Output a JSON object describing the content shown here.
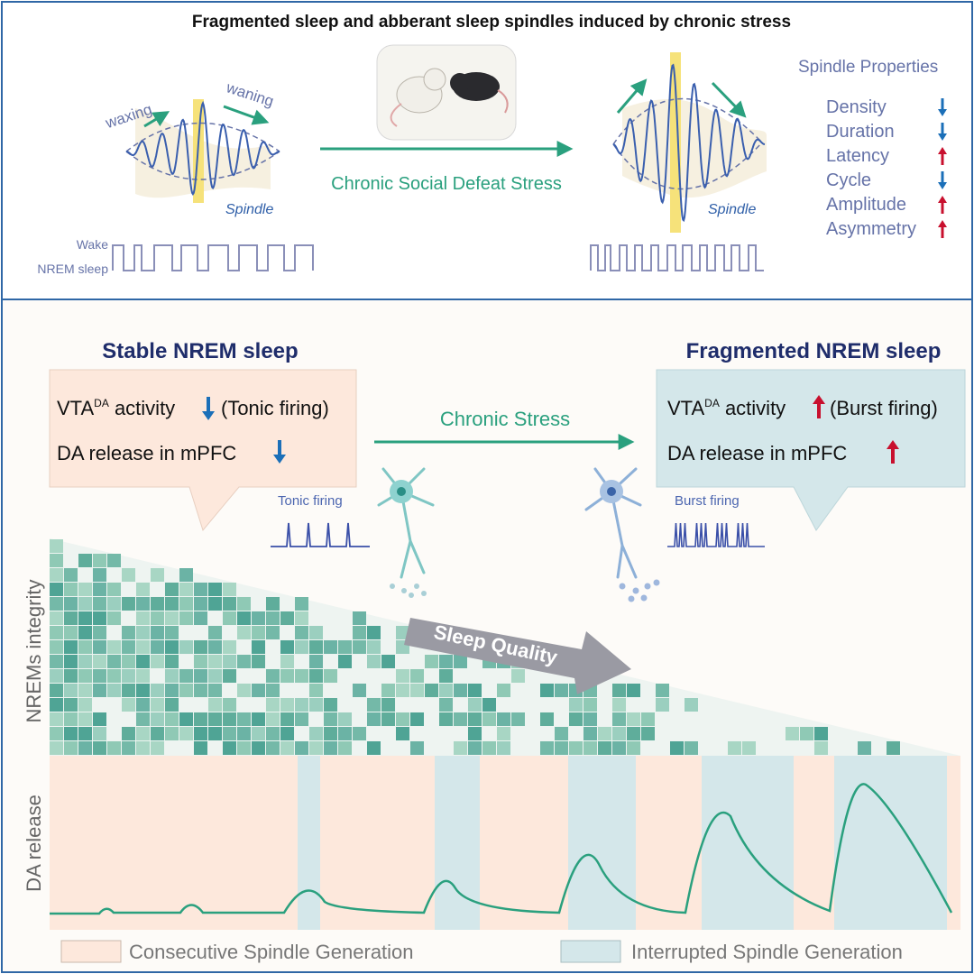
{
  "top": {
    "title": "Fragmented sleep and abberant sleep spindles induced by chronic stress",
    "waxing": "waxing",
    "waning": "waning",
    "spindle_label": "Spindle",
    "wake_label": "Wake",
    "nrem_label": "NREM sleep",
    "arrow_label": "Chronic Social Defeat Stress",
    "properties_title": "Spindle Properties",
    "properties": [
      {
        "name": "Density",
        "dir": "down"
      },
      {
        "name": "Duration",
        "dir": "down"
      },
      {
        "name": "Latency",
        "dir": "up"
      },
      {
        "name": "Cycle",
        "dir": "down"
      },
      {
        "name": "Amplitude",
        "dir": "up"
      },
      {
        "name": "Asymmetry",
        "dir": "up"
      }
    ]
  },
  "bottom": {
    "stable_title": "Stable NREM sleep",
    "stable_line1_pre": "VTA",
    "stable_line1_sup": "DA",
    "stable_line1_mid": " activity",
    "stable_line1_post": "(Tonic firing)",
    "stable_line2": "DA release in mPFC",
    "fragmented_title": "Fragmented NREM sleep",
    "frag_line1_pre": "VTA",
    "frag_line1_sup": "DA",
    "frag_line1_mid": " activity",
    "frag_line1_post": "(Burst firing)",
    "frag_line2": "DA release in mPFC",
    "chronic_stress": "Chronic Stress",
    "tonic_firing": "Tonic firing",
    "burst_firing": "Burst firing",
    "sleep_quality": "Sleep Quality",
    "nrems_axis": "NREMs integrity",
    "da_axis": "DA release",
    "legend_consecutive": "Consecutive Spindle Generation",
    "legend_interrupted": "Interrupted Spindle Generation"
  },
  "colors": {
    "frame": "#2f67a6",
    "teal": "#2aa07e",
    "blue_text": "#6673a8",
    "navy": "#1f2d6b",
    "arrow_up": "#c8102e",
    "arrow_down": "#1b6fb8",
    "peach": "#fde8dc",
    "light_blue": "#d4e7ea"
  }
}
